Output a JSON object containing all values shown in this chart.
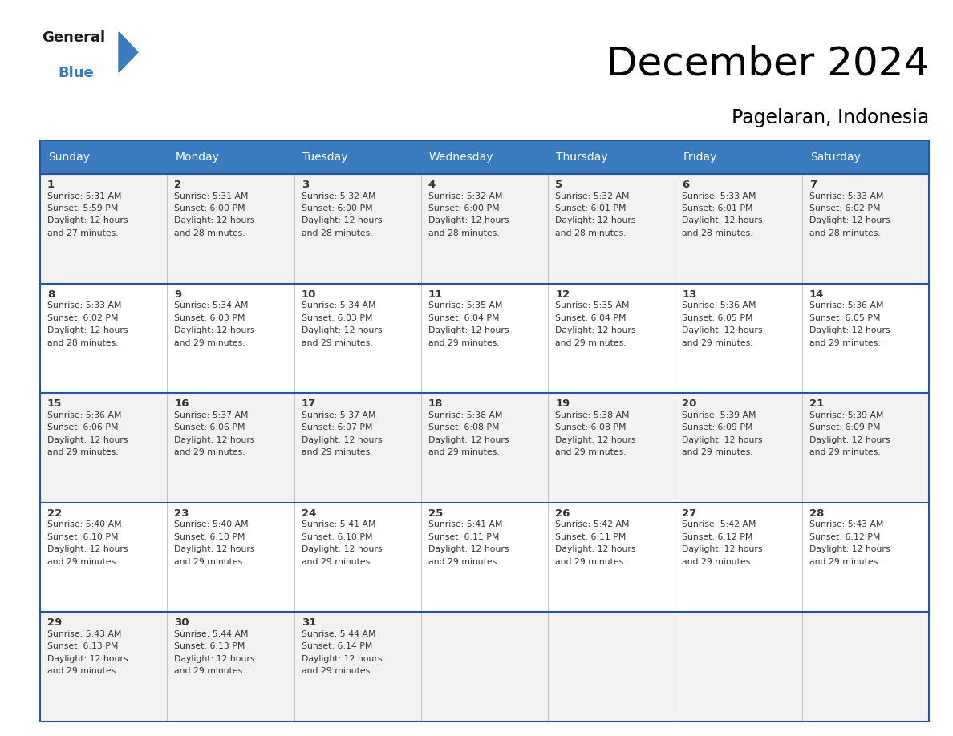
{
  "title": "December 2024",
  "subtitle": "Pagelaran, Indonesia",
  "header_color": "#3a7abf",
  "header_text_color": "#ffffff",
  "cell_bg_even": "#f2f2f2",
  "cell_bg_odd": "#ffffff",
  "border_color": "#2255aa",
  "cell_border_color": "#bbbbbb",
  "text_color": "#333333",
  "days_of_week": [
    "Sunday",
    "Monday",
    "Tuesday",
    "Wednesday",
    "Thursday",
    "Friday",
    "Saturday"
  ],
  "calendar_data": [
    [
      {
        "day": 1,
        "sunrise": "5:31 AM",
        "sunset": "5:59 PM",
        "daylight": "12 hours and 27 minutes."
      },
      {
        "day": 2,
        "sunrise": "5:31 AM",
        "sunset": "6:00 PM",
        "daylight": "12 hours and 28 minutes."
      },
      {
        "day": 3,
        "sunrise": "5:32 AM",
        "sunset": "6:00 PM",
        "daylight": "12 hours and 28 minutes."
      },
      {
        "day": 4,
        "sunrise": "5:32 AM",
        "sunset": "6:00 PM",
        "daylight": "12 hours and 28 minutes."
      },
      {
        "day": 5,
        "sunrise": "5:32 AM",
        "sunset": "6:01 PM",
        "daylight": "12 hours and 28 minutes."
      },
      {
        "day": 6,
        "sunrise": "5:33 AM",
        "sunset": "6:01 PM",
        "daylight": "12 hours and 28 minutes."
      },
      {
        "day": 7,
        "sunrise": "5:33 AM",
        "sunset": "6:02 PM",
        "daylight": "12 hours and 28 minutes."
      }
    ],
    [
      {
        "day": 8,
        "sunrise": "5:33 AM",
        "sunset": "6:02 PM",
        "daylight": "12 hours and 28 minutes."
      },
      {
        "day": 9,
        "sunrise": "5:34 AM",
        "sunset": "6:03 PM",
        "daylight": "12 hours and 29 minutes."
      },
      {
        "day": 10,
        "sunrise": "5:34 AM",
        "sunset": "6:03 PM",
        "daylight": "12 hours and 29 minutes."
      },
      {
        "day": 11,
        "sunrise": "5:35 AM",
        "sunset": "6:04 PM",
        "daylight": "12 hours and 29 minutes."
      },
      {
        "day": 12,
        "sunrise": "5:35 AM",
        "sunset": "6:04 PM",
        "daylight": "12 hours and 29 minutes."
      },
      {
        "day": 13,
        "sunrise": "5:36 AM",
        "sunset": "6:05 PM",
        "daylight": "12 hours and 29 minutes."
      },
      {
        "day": 14,
        "sunrise": "5:36 AM",
        "sunset": "6:05 PM",
        "daylight": "12 hours and 29 minutes."
      }
    ],
    [
      {
        "day": 15,
        "sunrise": "5:36 AM",
        "sunset": "6:06 PM",
        "daylight": "12 hours and 29 minutes."
      },
      {
        "day": 16,
        "sunrise": "5:37 AM",
        "sunset": "6:06 PM",
        "daylight": "12 hours and 29 minutes."
      },
      {
        "day": 17,
        "sunrise": "5:37 AM",
        "sunset": "6:07 PM",
        "daylight": "12 hours and 29 minutes."
      },
      {
        "day": 18,
        "sunrise": "5:38 AM",
        "sunset": "6:08 PM",
        "daylight": "12 hours and 29 minutes."
      },
      {
        "day": 19,
        "sunrise": "5:38 AM",
        "sunset": "6:08 PM",
        "daylight": "12 hours and 29 minutes."
      },
      {
        "day": 20,
        "sunrise": "5:39 AM",
        "sunset": "6:09 PM",
        "daylight": "12 hours and 29 minutes."
      },
      {
        "day": 21,
        "sunrise": "5:39 AM",
        "sunset": "6:09 PM",
        "daylight": "12 hours and 29 minutes."
      }
    ],
    [
      {
        "day": 22,
        "sunrise": "5:40 AM",
        "sunset": "6:10 PM",
        "daylight": "12 hours and 29 minutes."
      },
      {
        "day": 23,
        "sunrise": "5:40 AM",
        "sunset": "6:10 PM",
        "daylight": "12 hours and 29 minutes."
      },
      {
        "day": 24,
        "sunrise": "5:41 AM",
        "sunset": "6:10 PM",
        "daylight": "12 hours and 29 minutes."
      },
      {
        "day": 25,
        "sunrise": "5:41 AM",
        "sunset": "6:11 PM",
        "daylight": "12 hours and 29 minutes."
      },
      {
        "day": 26,
        "sunrise": "5:42 AM",
        "sunset": "6:11 PM",
        "daylight": "12 hours and 29 minutes."
      },
      {
        "day": 27,
        "sunrise": "5:42 AM",
        "sunset": "6:12 PM",
        "daylight": "12 hours and 29 minutes."
      },
      {
        "day": 28,
        "sunrise": "5:43 AM",
        "sunset": "6:12 PM",
        "daylight": "12 hours and 29 minutes."
      }
    ],
    [
      {
        "day": 29,
        "sunrise": "5:43 AM",
        "sunset": "6:13 PM",
        "daylight": "12 hours and 29 minutes."
      },
      {
        "day": 30,
        "sunrise": "5:44 AM",
        "sunset": "6:13 PM",
        "daylight": "12 hours and 29 minutes."
      },
      {
        "day": 31,
        "sunrise": "5:44 AM",
        "sunset": "6:14 PM",
        "daylight": "12 hours and 29 minutes."
      },
      null,
      null,
      null,
      null
    ]
  ]
}
